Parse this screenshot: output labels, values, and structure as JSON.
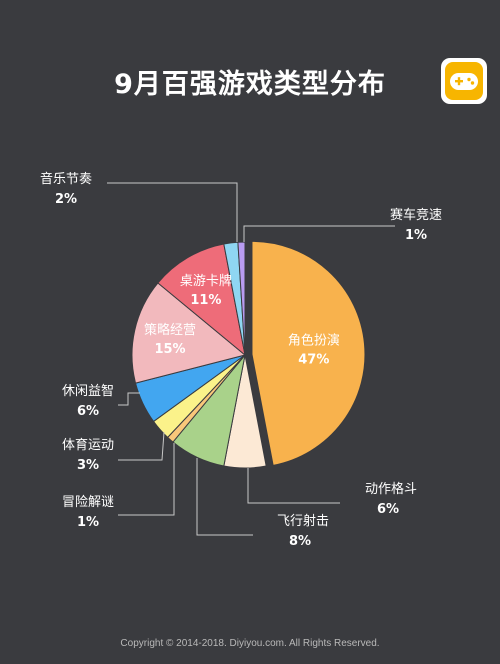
{
  "title": "9月百强游戏类型分布",
  "footer": "Copyright © 2014-2018. Diyiyou.com. All Rights Reserved.",
  "logo_icon": "gamepad-icon",
  "colors": {
    "background": "#3a3b3f",
    "leader_line": "#c8c8c8",
    "outside_label": "#ffffff"
  },
  "chart_data": {
    "type": "pie",
    "title": "9月百强游戏类型分布",
    "unit": "%",
    "slices": [
      {
        "label": "角色扮演",
        "value": 47,
        "value_text": "47%",
        "color": "#f8b24d",
        "label_position": "inside",
        "exploded": true
      },
      {
        "label": "动作格斗",
        "value": 6,
        "value_text": "6%",
        "color": "#fce9d5",
        "label_position": "outside"
      },
      {
        "label": "飞行射击",
        "value": 8,
        "value_text": "8%",
        "color": "#a9d28a",
        "label_position": "outside"
      },
      {
        "label": "冒险解谜",
        "value": 1,
        "value_text": "1%",
        "color": "#f9c77a",
        "label_position": "outside"
      },
      {
        "label": "体育运动",
        "value": 3,
        "value_text": "3%",
        "color": "#fbf28a",
        "label_position": "outside"
      },
      {
        "label": "休闲益智",
        "value": 6,
        "value_text": "6%",
        "color": "#42a6f0",
        "label_position": "outside"
      },
      {
        "label": "策略经营",
        "value": 15,
        "value_text": "15%",
        "color": "#f2b9bd",
        "label_position": "inside"
      },
      {
        "label": "桌游卡牌",
        "value": 11,
        "value_text": "11%",
        "color": "#ee6c79",
        "label_position": "inside"
      },
      {
        "label": "音乐节奏",
        "value": 2,
        "value_text": "2%",
        "color": "#8fd6f2",
        "label_position": "outside"
      },
      {
        "label": "赛车竞速",
        "value": 1,
        "value_text": "1%",
        "color": "#b99cf2",
        "label_position": "outside"
      }
    ]
  }
}
